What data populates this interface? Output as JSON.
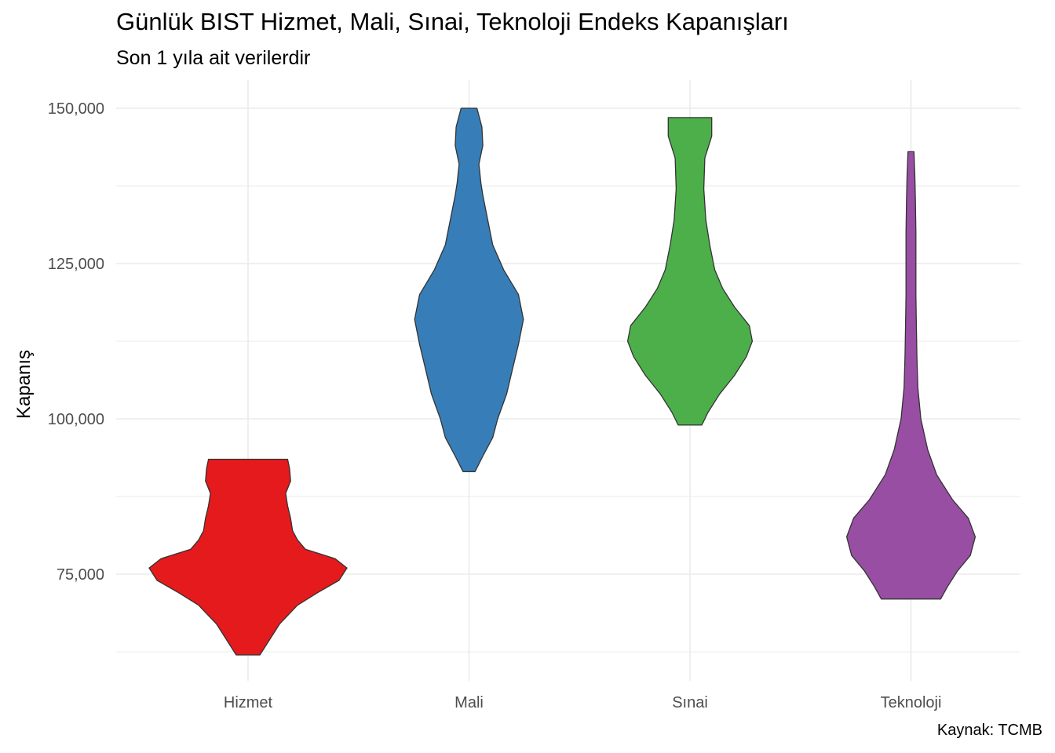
{
  "chart_data": {
    "type": "violin",
    "title": "Günlük BIST Hizmet, Mali, Sınai, Teknoloji Endeks Kapanışları",
    "subtitle": "Son 1 yıla ait verilerdir",
    "caption": "Kaynak: TCMB",
    "xlabel": "",
    "ylabel": "Kapanış",
    "ylim": [
      62500,
      153000
    ],
    "yticks": [
      75000,
      100000,
      125000,
      150000
    ],
    "ytick_labels": [
      "75,000",
      "100,000",
      "125,000",
      "150,000"
    ],
    "grid": true,
    "categories": [
      "Hizmet",
      "Mali",
      "Sınai",
      "Teknoloji"
    ],
    "series": [
      {
        "category": "Hizmet",
        "color": "#E41A1C",
        "min": 62000,
        "max": 93500,
        "density": [
          [
            62000,
            0.12
          ],
          [
            64000,
            0.2
          ],
          [
            67000,
            0.32
          ],
          [
            70000,
            0.5
          ],
          [
            72000,
            0.7
          ],
          [
            74000,
            0.92
          ],
          [
            76000,
            1.0
          ],
          [
            77500,
            0.88
          ],
          [
            79000,
            0.58
          ],
          [
            80500,
            0.5
          ],
          [
            82000,
            0.45
          ],
          [
            84000,
            0.43
          ],
          [
            86000,
            0.4
          ],
          [
            88000,
            0.38
          ],
          [
            90000,
            0.43
          ],
          [
            92000,
            0.42
          ],
          [
            93500,
            0.4
          ]
        ]
      },
      {
        "category": "Mali",
        "color": "#377EB8",
        "min": 91500,
        "max": 150000,
        "density": [
          [
            91500,
            0.06
          ],
          [
            94000,
            0.14
          ],
          [
            97000,
            0.24
          ],
          [
            100000,
            0.29
          ],
          [
            104000,
            0.38
          ],
          [
            108000,
            0.44
          ],
          [
            112000,
            0.5
          ],
          [
            116000,
            0.55
          ],
          [
            120000,
            0.5
          ],
          [
            124000,
            0.35
          ],
          [
            128000,
            0.24
          ],
          [
            132000,
            0.19
          ],
          [
            136000,
            0.14
          ],
          [
            138000,
            0.12
          ],
          [
            141000,
            0.1
          ],
          [
            144000,
            0.14
          ],
          [
            147000,
            0.13
          ],
          [
            150000,
            0.08
          ]
        ]
      },
      {
        "category": "Sınai",
        "color": "#4DAF4A",
        "min": 99000,
        "max": 148500,
        "density": [
          [
            99000,
            0.12
          ],
          [
            101000,
            0.18
          ],
          [
            104000,
            0.3
          ],
          [
            107000,
            0.45
          ],
          [
            110000,
            0.57
          ],
          [
            112500,
            0.63
          ],
          [
            115000,
            0.6
          ],
          [
            118000,
            0.45
          ],
          [
            121000,
            0.33
          ],
          [
            124000,
            0.25
          ],
          [
            128000,
            0.2
          ],
          [
            132000,
            0.16
          ],
          [
            137000,
            0.14
          ],
          [
            142000,
            0.15
          ],
          [
            145500,
            0.22
          ],
          [
            148500,
            0.22
          ]
        ]
      },
      {
        "category": "Teknoloji",
        "color": "#984EA3",
        "min": 71000,
        "max": 143000,
        "density": [
          [
            71000,
            0.3
          ],
          [
            73000,
            0.37
          ],
          [
            75500,
            0.47
          ],
          [
            78000,
            0.6
          ],
          [
            81000,
            0.65
          ],
          [
            84000,
            0.58
          ],
          [
            87000,
            0.42
          ],
          [
            91000,
            0.26
          ],
          [
            95000,
            0.17
          ],
          [
            100000,
            0.1
          ],
          [
            105000,
            0.07
          ],
          [
            110000,
            0.06
          ],
          [
            115000,
            0.055
          ],
          [
            120000,
            0.05
          ],
          [
            125000,
            0.05
          ],
          [
            130000,
            0.05
          ],
          [
            135000,
            0.045
          ],
          [
            139000,
            0.04
          ],
          [
            143000,
            0.03
          ]
        ]
      }
    ]
  }
}
